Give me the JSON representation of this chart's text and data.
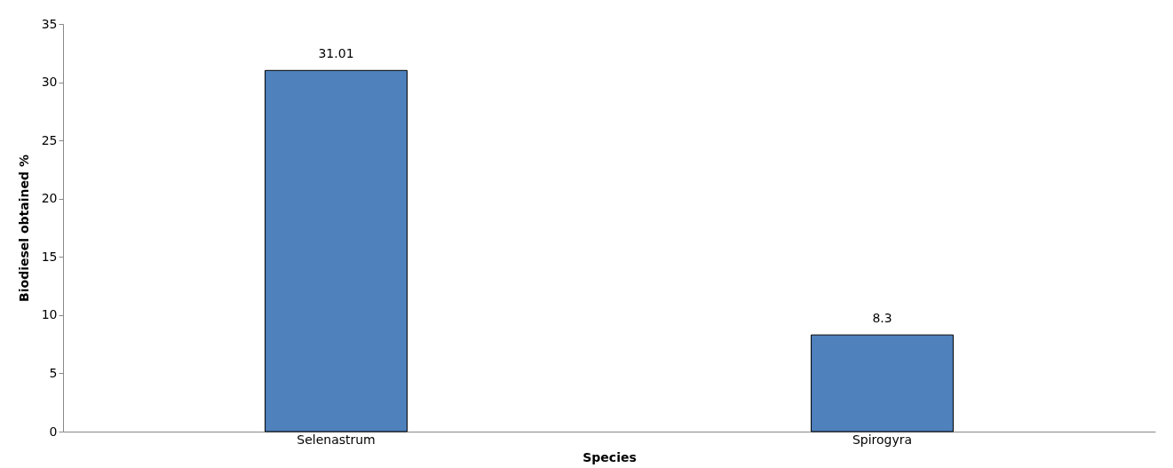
{
  "chart_data": {
    "type": "bar",
    "xlabel": "Species",
    "ylabel": "Biodiesel obtained %",
    "categories": [
      "Selenastrum",
      "Spirogyra"
    ],
    "values": [
      31.01,
      8.3
    ],
    "color": "#4f81bd",
    "ylim": [
      0,
      35
    ],
    "yticks": [
      0,
      5,
      10,
      15,
      20,
      25,
      30,
      35
    ],
    "grid": false,
    "data_labels": true
  }
}
